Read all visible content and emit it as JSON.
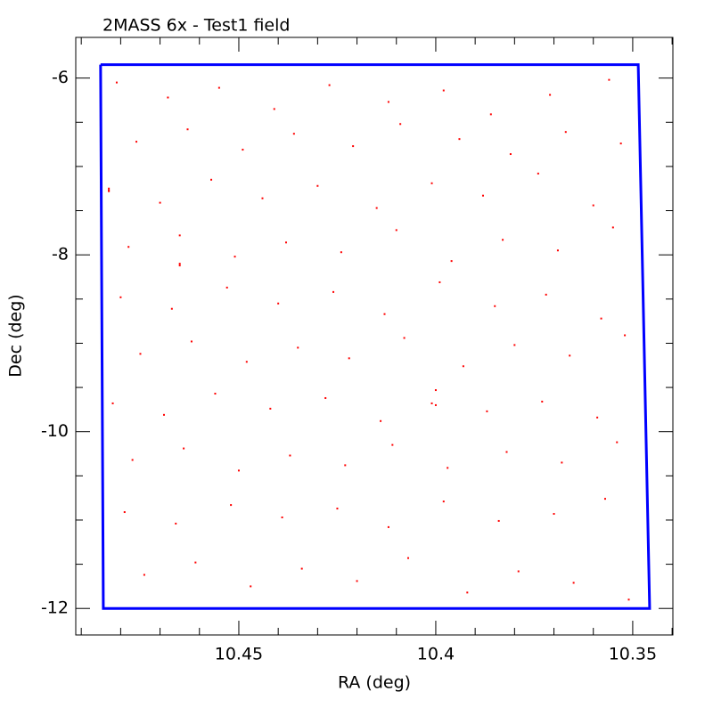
{
  "chart_data": {
    "type": "scatter",
    "title": "2MASS 6x - Test1 field",
    "x_label": "RA (deg)",
    "y_label": "Dec (deg)",
    "xlim": [
      10.4914,
      10.3398
    ],
    "ylim": [
      -12.3,
      -5.54
    ],
    "xticks": [
      10.45,
      10.4,
      10.35
    ],
    "yticks": [
      -6,
      -8,
      -10,
      -12
    ],
    "series": [
      {
        "color": "#ff0000",
        "marker": "dot",
        "x": [
          10.481,
          10.468,
          10.455,
          10.441,
          10.427,
          10.412,
          10.398,
          10.386,
          10.371,
          10.356,
          10.476,
          10.463,
          10.449,
          10.436,
          10.421,
          10.409,
          10.394,
          10.381,
          10.367,
          10.353,
          10.483,
          10.47,
          10.457,
          10.444,
          10.43,
          10.415,
          10.401,
          10.388,
          10.374,
          10.36,
          10.478,
          10.465,
          10.451,
          10.438,
          10.424,
          10.41,
          10.396,
          10.383,
          10.369,
          10.355,
          10.48,
          10.467,
          10.453,
          10.44,
          10.426,
          10.413,
          10.399,
          10.385,
          10.372,
          10.358,
          10.475,
          10.462,
          10.448,
          10.435,
          10.422,
          10.408,
          10.393,
          10.38,
          10.366,
          10.352,
          10.482,
          10.469,
          10.456,
          10.442,
          10.428,
          10.414,
          10.4,
          10.387,
          10.373,
          10.359,
          10.477,
          10.464,
          10.45,
          10.437,
          10.423,
          10.411,
          10.397,
          10.382,
          10.368,
          10.354,
          10.479,
          10.466,
          10.452,
          10.439,
          10.425,
          10.412,
          10.398,
          10.384,
          10.37,
          10.357,
          10.474,
          10.461,
          10.447,
          10.434,
          10.42,
          10.407,
          10.392,
          10.379,
          10.365,
          10.351,
          10.483,
          10.465,
          10.401,
          10.483,
          10.465,
          10.4
        ],
        "y": [
          -6.05,
          -6.22,
          -6.11,
          -6.35,
          -6.08,
          -6.27,
          -6.14,
          -6.41,
          -6.19,
          -6.02,
          -6.72,
          -6.58,
          -6.81,
          -6.63,
          -6.77,
          -6.52,
          -6.69,
          -6.86,
          -6.61,
          -6.74,
          -7.28,
          -7.41,
          -7.15,
          -7.36,
          -7.22,
          -7.47,
          -7.19,
          -7.33,
          -7.08,
          -7.44,
          -7.91,
          -7.78,
          -8.02,
          -7.86,
          -7.97,
          -7.72,
          -8.07,
          -7.83,
          -7.95,
          -7.69,
          -8.48,
          -8.61,
          -8.37,
          -8.55,
          -8.42,
          -8.67,
          -8.31,
          -8.58,
          -8.45,
          -8.72,
          -9.12,
          -8.98,
          -9.21,
          -9.05,
          -9.17,
          -8.94,
          -9.26,
          -9.02,
          -9.14,
          -8.91,
          -9.68,
          -9.81,
          -9.57,
          -9.74,
          -9.62,
          -9.88,
          -9.53,
          -9.77,
          -9.66,
          -9.84,
          -10.32,
          -10.19,
          -10.44,
          -10.27,
          -10.38,
          -10.15,
          -10.41,
          -10.23,
          -10.35,
          -10.12,
          -10.91,
          -11.04,
          -10.83,
          -10.97,
          -10.87,
          -11.08,
          -10.79,
          -11.01,
          -10.93,
          -10.76,
          -11.62,
          -11.48,
          -11.75,
          -11.55,
          -11.69,
          -11.43,
          -11.82,
          -11.58,
          -11.71,
          -11.9,
          -7.25,
          -8.1,
          -9.68,
          -7.27,
          -8.12,
          -9.7
        ]
      },
      {
        "color": "#0000ff",
        "marker": "line",
        "x": [
          10.4851,
          10.3486,
          10.3457,
          10.4844,
          10.4851
        ],
        "y": [
          -5.849,
          -5.849,
          -12,
          -12,
          -5.849
        ]
      }
    ]
  }
}
